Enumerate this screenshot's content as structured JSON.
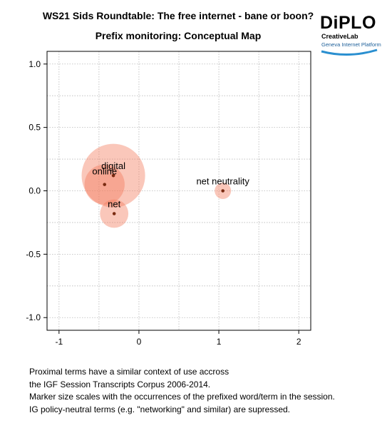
{
  "header": {
    "title": "WS21 Sids Roundtable: The free internet - bane or boon?",
    "subtitle": "Prefix monitoring: Conceptual Map"
  },
  "logo": {
    "word": "DiPLO",
    "sub": "CreativeLab",
    "sub2": "Geneva Internet Platform"
  },
  "chart_data": {
    "type": "scatter",
    "title": "",
    "xlabel": "",
    "ylabel": "",
    "xlim": [
      -1.15,
      2.15
    ],
    "ylim": [
      -1.1,
      1.1
    ],
    "xticks": [
      -1,
      0,
      1,
      2
    ],
    "yticks": [
      1.0,
      0.5,
      0.0,
      -0.5,
      -1.0
    ],
    "xtick_labels": [
      "-1",
      "0",
      "1",
      "2"
    ],
    "ytick_labels": [
      "1.0",
      "0.5",
      "0.0",
      "-0.5",
      "-1.0"
    ],
    "grid": true,
    "points": [
      {
        "label": "digital",
        "x": -0.32,
        "y": 0.12,
        "occurrences": 15
      },
      {
        "label": "online",
        "x": -0.43,
        "y": 0.05,
        "occurrences": 6
      },
      {
        "label": "net",
        "x": -0.31,
        "y": -0.18,
        "occurrences": 3
      },
      {
        "label": "net neutrality",
        "x": 1.05,
        "y": 0.0,
        "occurrences": 1
      }
    ],
    "marker_color": "#f4795a",
    "center_color": "#7a2a10"
  },
  "notes": [
    "Proximal terms have a similar context of use accross",
    "the IGF Session Transcripts Corpus 2006-2014.",
    "Marker size scales with the occurrences of the prefixed word/term in the session.",
    "IG policy-neutral terms (e.g. \"networking\" and similar) are supressed."
  ]
}
